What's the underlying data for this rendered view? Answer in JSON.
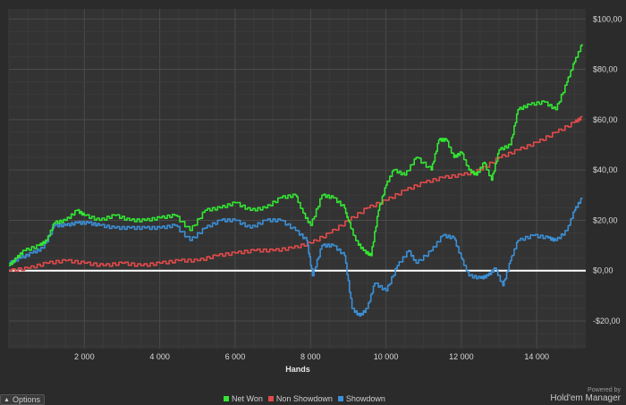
{
  "chart_data": {
    "type": "line",
    "xlabel": "Hands",
    "x_ticks": [
      2000,
      4000,
      6000,
      8000,
      10000,
      12000,
      14000
    ],
    "x_tick_labels": [
      "2 000",
      "4 000",
      "6 000",
      "8 000",
      "10 000",
      "12 000",
      "14 000"
    ],
    "y_ticks": [
      -20,
      0,
      20,
      40,
      60,
      80,
      100
    ],
    "y_tick_labels": [
      "-$20,00",
      "$0,00",
      "$20,00",
      "$40,00",
      "$60,00",
      "$80,00",
      "$100,00"
    ],
    "xlim": [
      0,
      15300
    ],
    "ylim": [
      -31,
      104
    ],
    "grid": true,
    "zero_line": true,
    "legend_position": "bottom",
    "series": [
      {
        "name": "Net Won",
        "color": "#33e633",
        "points": [
          [
            0,
            2
          ],
          [
            200,
            5
          ],
          [
            400,
            8
          ],
          [
            800,
            10
          ],
          [
            1000,
            12
          ],
          [
            1200,
            19
          ],
          [
            1500,
            20
          ],
          [
            1800,
            24
          ],
          [
            2000,
            22
          ],
          [
            2400,
            20
          ],
          [
            2800,
            22
          ],
          [
            3200,
            20
          ],
          [
            3600,
            20
          ],
          [
            4000,
            21
          ],
          [
            4400,
            22
          ],
          [
            4800,
            16
          ],
          [
            5200,
            24
          ],
          [
            5600,
            25
          ],
          [
            6000,
            27
          ],
          [
            6400,
            24
          ],
          [
            6800,
            25
          ],
          [
            7200,
            29
          ],
          [
            7600,
            30
          ],
          [
            7800,
            23
          ],
          [
            8000,
            18
          ],
          [
            8300,
            30
          ],
          [
            8600,
            29
          ],
          [
            8900,
            25
          ],
          [
            9000,
            20
          ],
          [
            9200,
            12
          ],
          [
            9400,
            8
          ],
          [
            9600,
            6
          ],
          [
            9800,
            24
          ],
          [
            10000,
            34
          ],
          [
            10200,
            40
          ],
          [
            10500,
            38
          ],
          [
            10800,
            45
          ],
          [
            11200,
            40
          ],
          [
            11400,
            52
          ],
          [
            11600,
            52
          ],
          [
            11800,
            45
          ],
          [
            12000,
            47
          ],
          [
            12200,
            40
          ],
          [
            12400,
            38
          ],
          [
            12600,
            43
          ],
          [
            12800,
            36
          ],
          [
            13000,
            48
          ],
          [
            13300,
            50
          ],
          [
            13500,
            64
          ],
          [
            13800,
            66
          ],
          [
            14200,
            67
          ],
          [
            14500,
            64
          ],
          [
            14800,
            75
          ],
          [
            15000,
            83
          ],
          [
            15200,
            90
          ]
        ]
      },
      {
        "name": "Non Showdown",
        "color": "#e34a4a",
        "points": [
          [
            0,
            0
          ],
          [
            500,
            1
          ],
          [
            1000,
            3
          ],
          [
            1500,
            4
          ],
          [
            2000,
            3
          ],
          [
            2500,
            2
          ],
          [
            3000,
            3
          ],
          [
            3500,
            2
          ],
          [
            4000,
            3
          ],
          [
            4500,
            4
          ],
          [
            5000,
            4
          ],
          [
            5500,
            6
          ],
          [
            6000,
            7
          ],
          [
            6500,
            8
          ],
          [
            7000,
            8
          ],
          [
            7500,
            9
          ],
          [
            8000,
            11
          ],
          [
            8500,
            15
          ],
          [
            9000,
            20
          ],
          [
            9500,
            25
          ],
          [
            10000,
            28
          ],
          [
            10500,
            32
          ],
          [
            11000,
            35
          ],
          [
            11500,
            37
          ],
          [
            12000,
            38
          ],
          [
            12500,
            40
          ],
          [
            13000,
            45
          ],
          [
            13500,
            48
          ],
          [
            14000,
            51
          ],
          [
            14500,
            55
          ],
          [
            15000,
            59
          ],
          [
            15200,
            61
          ]
        ]
      },
      {
        "name": "Showdown",
        "color": "#3b8fd6",
        "points": [
          [
            0,
            3
          ],
          [
            300,
            5
          ],
          [
            600,
            7
          ],
          [
            900,
            9
          ],
          [
            1200,
            18
          ],
          [
            1500,
            18
          ],
          [
            1800,
            19
          ],
          [
            2100,
            19
          ],
          [
            2400,
            18
          ],
          [
            2800,
            17
          ],
          [
            3200,
            17
          ],
          [
            3600,
            17
          ],
          [
            4000,
            17
          ],
          [
            4400,
            18
          ],
          [
            4800,
            12
          ],
          [
            5200,
            17
          ],
          [
            5600,
            20
          ],
          [
            6000,
            20
          ],
          [
            6400,
            17
          ],
          [
            6800,
            20
          ],
          [
            7200,
            20
          ],
          [
            7600,
            16
          ],
          [
            7900,
            12
          ],
          [
            8050,
            -2
          ],
          [
            8300,
            10
          ],
          [
            8600,
            10
          ],
          [
            8900,
            6
          ],
          [
            9100,
            -15
          ],
          [
            9300,
            -18
          ],
          [
            9500,
            -15
          ],
          [
            9700,
            -5
          ],
          [
            10000,
            -8
          ],
          [
            10300,
            2
          ],
          [
            10600,
            8
          ],
          [
            10800,
            3
          ],
          [
            11200,
            8
          ],
          [
            11500,
            14
          ],
          [
            11800,
            13
          ],
          [
            12000,
            5
          ],
          [
            12200,
            -2
          ],
          [
            12500,
            -3
          ],
          [
            12700,
            -2
          ],
          [
            12900,
            1
          ],
          [
            13100,
            -6
          ],
          [
            13300,
            4
          ],
          [
            13500,
            12
          ],
          [
            13900,
            14
          ],
          [
            14300,
            13
          ],
          [
            14500,
            12
          ],
          [
            14800,
            16
          ],
          [
            15000,
            24
          ],
          [
            15200,
            29
          ]
        ]
      }
    ]
  },
  "legend": [
    {
      "label": "Net Won",
      "color": "#33e633"
    },
    {
      "label": "Non Showdown",
      "color": "#e34a4a"
    },
    {
      "label": "Showdown",
      "color": "#3b8fd6"
    }
  ],
  "ui": {
    "options_label": "Options",
    "powered_by": "Powered by",
    "brand": "Hold'em Manager"
  }
}
